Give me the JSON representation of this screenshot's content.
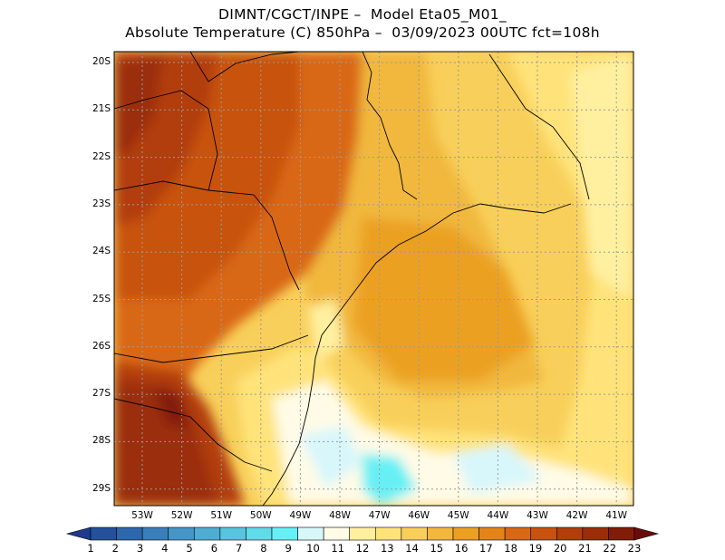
{
  "header": {
    "line1": "DIMNT/CGCT/INPE –  Model Eta05_M01_",
    "line2": "Absolute Temperature (C) 850hPa –  03/09/2023 00UTC fct=108h"
  },
  "map": {
    "lat_labels": [
      "20S",
      "21S",
      "22S",
      "23S",
      "24S",
      "25S",
      "26S",
      "27S",
      "28S",
      "29S"
    ],
    "lon_labels": [
      "53W",
      "52W",
      "51W",
      "50W",
      "49W",
      "48W",
      "47W",
      "46W",
      "45W",
      "44W",
      "43W",
      "42W",
      "41W"
    ]
  },
  "colorbar": {
    "labels": [
      "1",
      "2",
      "3",
      "4",
      "5",
      "6",
      "7",
      "8",
      "9",
      "10",
      "11",
      "12",
      "13",
      "14",
      "15",
      "16",
      "17",
      "18",
      "19",
      "20",
      "21",
      "22",
      "23"
    ],
    "colors": [
      "#1e3a8c",
      "#24519c",
      "#2d68ac",
      "#3a7fba",
      "#4596c6",
      "#4fadd2",
      "#58c4de",
      "#5fdbe9",
      "#66f0f5",
      "#d8f7fb",
      "#fffbe6",
      "#fff0a0",
      "#ffe37a",
      "#f8cf5a",
      "#f1b83c",
      "#eba021",
      "#e48417",
      "#d96814",
      "#c8520f",
      "#b23e0c",
      "#9b2d0a",
      "#821c08",
      "#6a0d0a"
    ]
  }
}
